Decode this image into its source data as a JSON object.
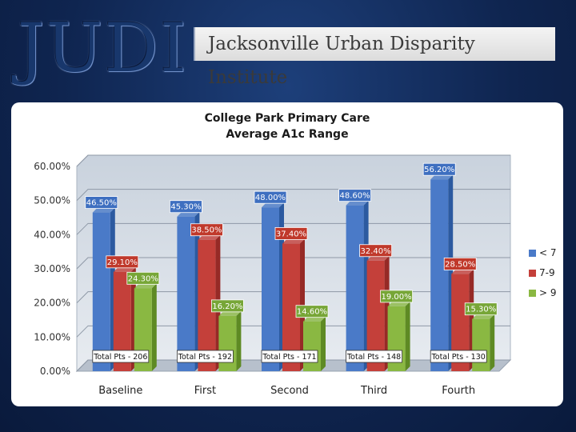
{
  "header": {
    "logo_text": "JUDI",
    "banner_text": "Jacksonville Urban Disparity Institute"
  },
  "colors": {
    "series": [
      "#4a7ac8",
      "#c4403a",
      "#8ab842"
    ],
    "series_dark": [
      "#2c5aa0",
      "#962a26",
      "#5e8a24"
    ],
    "label_box": [
      "#3e6fc0",
      "#c0392b",
      "#77a637"
    ]
  },
  "chart_data": {
    "type": "bar",
    "title": [
      "College Park Primary Care",
      "Average A1c Range"
    ],
    "categories": [
      "Baseline",
      "First",
      "Second",
      "Third",
      "Fourth"
    ],
    "ylim": [
      0,
      60
    ],
    "yticks": [
      0,
      10,
      20,
      30,
      40,
      50,
      60
    ],
    "ytick_labels": [
      "0.00%",
      "10.00%",
      "20.00%",
      "30.00%",
      "40.00%",
      "50.00%",
      "60.00%"
    ],
    "legend_position": "right",
    "grid": true,
    "series": [
      {
        "name": "< 7",
        "values": [
          46.5,
          45.3,
          48.0,
          48.6,
          56.2
        ],
        "labels": [
          "46.50%",
          "45.30%",
          "48.00%",
          "48.60%",
          "56.20%"
        ]
      },
      {
        "name": "7-9",
        "values": [
          29.1,
          38.5,
          37.4,
          32.4,
          28.5
        ],
        "labels": [
          "29.10%",
          "38.50%",
          "37.40%",
          "32.40%",
          "28.50%"
        ]
      },
      {
        "name": "> 9",
        "values": [
          24.3,
          16.2,
          14.6,
          19.0,
          15.3
        ],
        "labels": [
          "24.30%",
          "16.20%",
          "14.60%",
          "19.00%",
          "15.30%"
        ]
      }
    ],
    "totals": [
      "Total Pts - 206",
      "Total Pts - 192",
      "Total Pts - 171",
      "Total Pts - 148",
      "Total Pts - 130"
    ]
  }
}
